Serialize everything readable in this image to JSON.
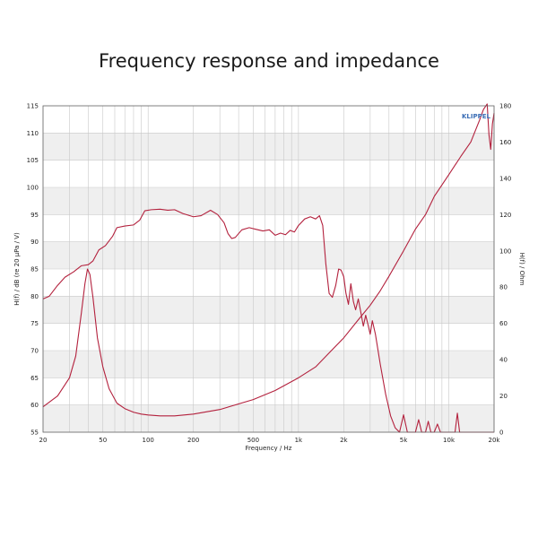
{
  "title": "Frequency response and impedance",
  "colors": {
    "curve": "#b3213d",
    "band": "#efefef",
    "grid": "#c9c9c9",
    "frame": "#666666"
  },
  "logo_text": "KLIPPEL",
  "chart_data": {
    "type": "line",
    "title": "Frequency response and impedance",
    "xlabel": "Frequency / Hz",
    "ylabel": "H(f) / dB (re 20 µPa / V)",
    "y2label": "H(f) / Ohm",
    "x_scale": "log",
    "xlim": [
      20,
      20000
    ],
    "ylim": [
      55,
      115
    ],
    "y2lim": [
      0,
      180
    ],
    "grid": true,
    "x_tick_labels": [
      {
        "value": 20,
        "label": "20"
      },
      {
        "value": 50,
        "label": "50"
      },
      {
        "value": 100,
        "label": "100"
      },
      {
        "value": 200,
        "label": "200"
      },
      {
        "value": 500,
        "label": "500"
      },
      {
        "value": 1000,
        "label": "1k"
      },
      {
        "value": 2000,
        "label": "2k"
      },
      {
        "value": 5000,
        "label": "5k"
      },
      {
        "value": 10000,
        "label": "10k"
      },
      {
        "value": 20000,
        "label": "20k"
      }
    ],
    "y_ticks": [
      55,
      60,
      65,
      70,
      75,
      80,
      85,
      90,
      95,
      100,
      105,
      110,
      115
    ],
    "y2_ticks": [
      0,
      20,
      40,
      60,
      80,
      100,
      120,
      140,
      160,
      180
    ],
    "series": [
      {
        "axis": "left",
        "points": [
          [
            20,
            79.5
          ],
          [
            22,
            80
          ],
          [
            25,
            82
          ],
          [
            28,
            83.5
          ],
          [
            32,
            84.5
          ],
          [
            36,
            85.6
          ],
          [
            40,
            85.8
          ],
          [
            43,
            86.5
          ],
          [
            47,
            88.5
          ],
          [
            52,
            89.3
          ],
          [
            58,
            91
          ],
          [
            62,
            92.6
          ],
          [
            70,
            92.9
          ],
          [
            80,
            93.1
          ],
          [
            88,
            94
          ],
          [
            95,
            95.7
          ],
          [
            105,
            95.9
          ],
          [
            120,
            96
          ],
          [
            135,
            95.8
          ],
          [
            150,
            95.9
          ],
          [
            170,
            95.2
          ],
          [
            200,
            94.6
          ],
          [
            225,
            94.8
          ],
          [
            260,
            95.8
          ],
          [
            290,
            95
          ],
          [
            320,
            93.5
          ],
          [
            340,
            91.5
          ],
          [
            360,
            90.6
          ],
          [
            380,
            90.8
          ],
          [
            420,
            92.2
          ],
          [
            470,
            92.6
          ],
          [
            520,
            92.3
          ],
          [
            580,
            92
          ],
          [
            640,
            92.2
          ],
          [
            700,
            91.2
          ],
          [
            760,
            91.6
          ],
          [
            820,
            91.3
          ],
          [
            880,
            92.1
          ],
          [
            940,
            91.8
          ],
          [
            1000,
            93
          ],
          [
            1100,
            94.2
          ],
          [
            1200,
            94.6
          ],
          [
            1300,
            94.2
          ],
          [
            1380,
            94.8
          ],
          [
            1450,
            93
          ],
          [
            1520,
            86
          ],
          [
            1600,
            80.5
          ],
          [
            1680,
            79.8
          ],
          [
            1770,
            82
          ],
          [
            1850,
            85
          ],
          [
            1920,
            84.8
          ],
          [
            2000,
            83.6
          ],
          [
            2070,
            80.5
          ],
          [
            2150,
            78.5
          ],
          [
            2230,
            82.3
          ],
          [
            2320,
            79
          ],
          [
            2400,
            77.5
          ],
          [
            2500,
            79.5
          ],
          [
            2600,
            77
          ],
          [
            2700,
            74.5
          ],
          [
            2800,
            76.5
          ],
          [
            2900,
            74.8
          ],
          [
            3000,
            73
          ],
          [
            3100,
            75.5
          ],
          [
            3250,
            73
          ],
          [
            3500,
            67.5
          ],
          [
            3800,
            62
          ],
          [
            4100,
            58
          ],
          [
            4400,
            55.8
          ],
          [
            4700,
            55
          ],
          [
            5000,
            58.2
          ],
          [
            5300,
            55
          ],
          [
            6000,
            55
          ],
          [
            6300,
            57.3
          ],
          [
            6600,
            55
          ],
          [
            7000,
            55
          ],
          [
            7300,
            57
          ],
          [
            7600,
            55
          ],
          [
            8000,
            55
          ],
          [
            8400,
            56.5
          ],
          [
            8800,
            55
          ],
          [
            11000,
            55
          ],
          [
            11400,
            58.5
          ],
          [
            11800,
            55
          ],
          [
            20000,
            55
          ]
        ]
      },
      {
        "axis": "right",
        "points": [
          [
            20,
            14
          ],
          [
            25,
            20
          ],
          [
            30,
            30
          ],
          [
            33,
            42
          ],
          [
            36,
            66
          ],
          [
            38,
            82
          ],
          [
            39.5,
            90
          ],
          [
            41,
            87
          ],
          [
            43,
            74
          ],
          [
            46,
            52
          ],
          [
            50,
            36
          ],
          [
            55,
            24
          ],
          [
            62,
            16
          ],
          [
            70,
            13
          ],
          [
            80,
            11
          ],
          [
            90,
            10
          ],
          [
            100,
            9.5
          ],
          [
            120,
            9
          ],
          [
            150,
            9
          ],
          [
            200,
            10
          ],
          [
            300,
            12.5
          ],
          [
            500,
            18
          ],
          [
            700,
            23
          ],
          [
            1000,
            30
          ],
          [
            1300,
            36
          ],
          [
            1700,
            46
          ],
          [
            2000,
            52
          ],
          [
            2500,
            62
          ],
          [
            3000,
            70
          ],
          [
            3500,
            78
          ],
          [
            4000,
            86
          ],
          [
            5000,
            100
          ],
          [
            6000,
            112
          ],
          [
            7000,
            120
          ],
          [
            8000,
            130
          ],
          [
            10000,
            142
          ],
          [
            12000,
            152
          ],
          [
            14000,
            160
          ],
          [
            16000,
            172
          ],
          [
            17000,
            178
          ],
          [
            18000,
            181
          ],
          [
            18500,
            164
          ],
          [
            19000,
            156
          ],
          [
            19500,
            170
          ],
          [
            20000,
            176
          ]
        ]
      }
    ]
  }
}
